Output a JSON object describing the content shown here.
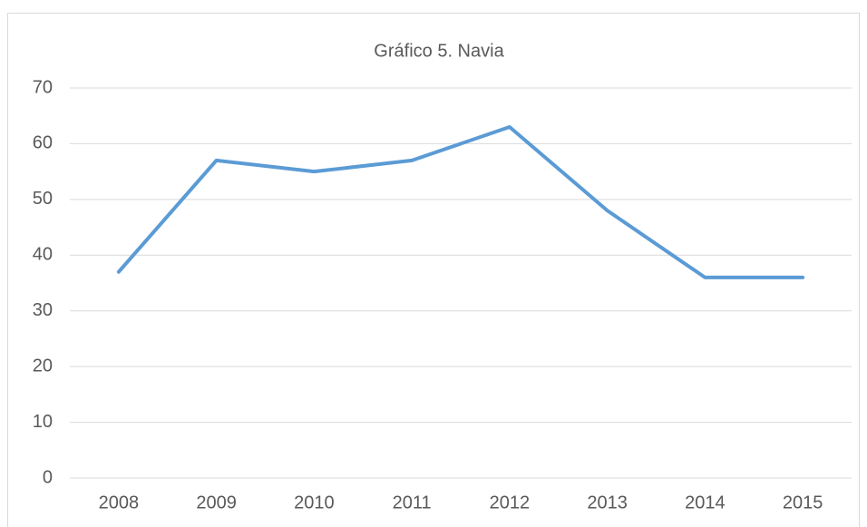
{
  "chart_data": {
    "type": "line",
    "title": "Gráfico 5. Navia",
    "categories": [
      "2008",
      "2009",
      "2010",
      "2011",
      "2012",
      "2013",
      "2014",
      "2015"
    ],
    "values": [
      37,
      57,
      55,
      57,
      63,
      48,
      36,
      36
    ],
    "color": "#5b9bd5",
    "ylim": [
      0,
      70
    ],
    "yticks": [
      0,
      10,
      20,
      30,
      40,
      50,
      60,
      70
    ],
    "grid": true
  }
}
